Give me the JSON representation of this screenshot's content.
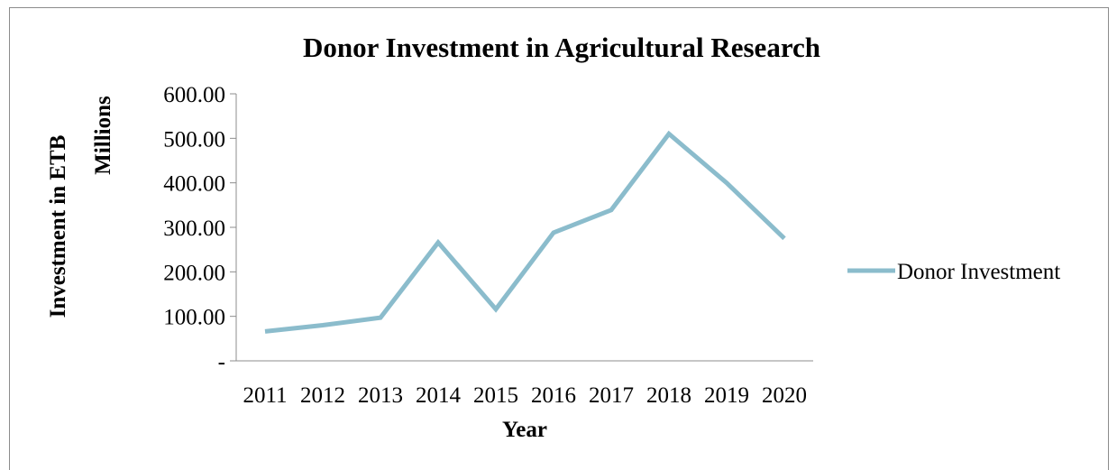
{
  "chart_data": {
    "type": "line",
    "title": "Donor Investment in Agricultural Research",
    "xlabel": "Year",
    "ylabel": "Investment in ETB",
    "yunit_label": "Millions",
    "categories": [
      "2011",
      "2012",
      "2013",
      "2014",
      "2015",
      "2016",
      "2017",
      "2018",
      "2019",
      "2020"
    ],
    "series": [
      {
        "name": "Donor Investment",
        "values": [
          66,
          80,
          97,
          266,
          116,
          288,
          339,
          510,
          400,
          275
        ],
        "color": "#8bbccc"
      }
    ],
    "ylim": [
      0,
      600
    ],
    "yticks": [
      0,
      100,
      200,
      300,
      400,
      500,
      600
    ],
    "ytick_labels": [
      "-",
      "100.00",
      "200.00",
      "300.00",
      "400.00",
      "500.00",
      "600.00"
    ],
    "grid": false,
    "legend_position": "right"
  }
}
